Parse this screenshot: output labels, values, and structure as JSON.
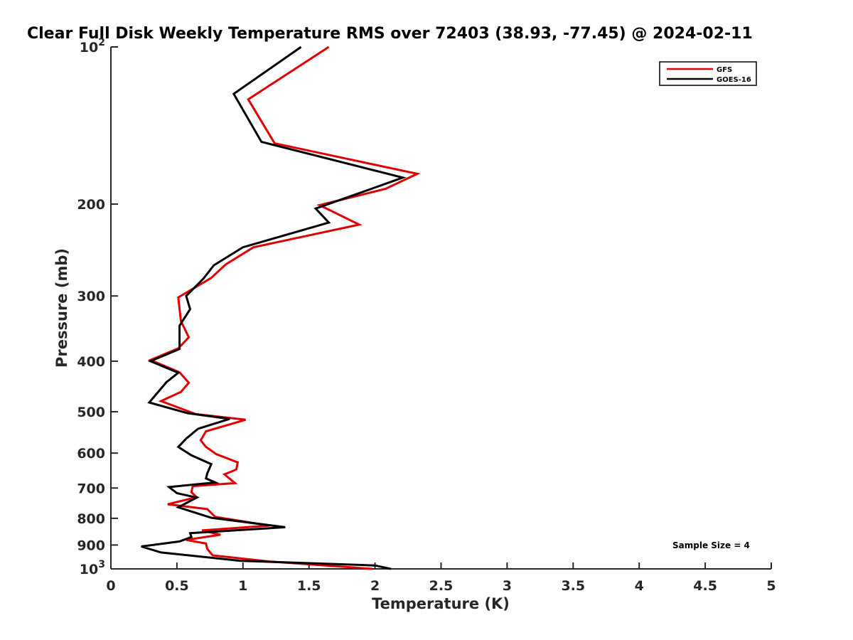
{
  "chart_data": {
    "type": "line",
    "title": "Clear Full Disk Weekly Temperature RMS over 72403 (38.93, -77.45) @ 2024-02-11",
    "xlabel": "Temperature (K)",
    "ylabel": "Pressure (mb)",
    "xlim": [
      0,
      5
    ],
    "ylim": [
      1000,
      100
    ],
    "y_scale": "log",
    "y_reversed": true,
    "x_ticks": [
      "0",
      "0.5",
      "1",
      "1.5",
      "2",
      "2.5",
      "3",
      "3.5",
      "4",
      "4.5",
      "5"
    ],
    "y_ticks": [
      {
        "value": 100,
        "base": "10",
        "exp": "2",
        "label": ""
      },
      {
        "value": 200,
        "label": "200"
      },
      {
        "value": 300,
        "label": "300"
      },
      {
        "value": 400,
        "label": "400"
      },
      {
        "value": 500,
        "label": "500"
      },
      {
        "value": 600,
        "label": "600"
      },
      {
        "value": 700,
        "label": "700"
      },
      {
        "value": 800,
        "label": "800"
      },
      {
        "value": 900,
        "label": "900"
      },
      {
        "value": 1000,
        "base": "10",
        "exp": "3",
        "label": ""
      }
    ],
    "grid": false,
    "legend_position": "top-right",
    "annotation": "Sample Size = 4",
    "series": [
      {
        "name": "GFS",
        "color": "#e00000",
        "points": [
          [
            1.65,
            100
          ],
          [
            1.04,
            126
          ],
          [
            1.24,
            153
          ],
          [
            2.32,
            175
          ],
          [
            2.08,
            187
          ],
          [
            1.58,
            201
          ],
          [
            1.88,
            219
          ],
          [
            1.08,
            242
          ],
          [
            0.87,
            261
          ],
          [
            0.76,
            277
          ],
          [
            0.51,
            302
          ],
          [
            0.53,
            335
          ],
          [
            0.59,
            360
          ],
          [
            0.51,
            378
          ],
          [
            0.3,
            398
          ],
          [
            0.52,
            420
          ],
          [
            0.59,
            440
          ],
          [
            0.53,
            458
          ],
          [
            0.38,
            477
          ],
          [
            0.64,
            505
          ],
          [
            1.02,
            518
          ],
          [
            0.72,
            545
          ],
          [
            0.68,
            567
          ],
          [
            0.72,
            584
          ],
          [
            0.8,
            603
          ],
          [
            0.96,
            625
          ],
          [
            0.95,
            645
          ],
          [
            0.86,
            659
          ],
          [
            0.94,
            685
          ],
          [
            0.62,
            694
          ],
          [
            0.61,
            713
          ],
          [
            0.65,
            729
          ],
          [
            0.43,
            752
          ],
          [
            0.73,
            768
          ],
          [
            0.79,
            795
          ],
          [
            1.2,
            826
          ],
          [
            0.69,
            844
          ],
          [
            0.83,
            860
          ],
          [
            0.57,
            880
          ],
          [
            0.72,
            894
          ],
          [
            0.73,
            916
          ],
          [
            0.77,
            942
          ],
          [
            1.2,
            968
          ],
          [
            1.98,
            1000
          ]
        ]
      },
      {
        "name": "GOES-16",
        "color": "#000000",
        "points": [
          [
            1.44,
            100
          ],
          [
            0.93,
            123
          ],
          [
            1.14,
            152
          ],
          [
            2.21,
            178
          ],
          [
            1.82,
            193
          ],
          [
            1.55,
            204
          ],
          [
            1.65,
            217
          ],
          [
            1.0,
            242
          ],
          [
            0.78,
            262
          ],
          [
            0.7,
            278
          ],
          [
            0.57,
            300
          ],
          [
            0.6,
            318
          ],
          [
            0.52,
            342
          ],
          [
            0.52,
            370
          ],
          [
            0.52,
            379
          ],
          [
            0.3,
            400
          ],
          [
            0.51,
            421
          ],
          [
            0.42,
            439
          ],
          [
            0.29,
            480
          ],
          [
            0.58,
            503
          ],
          [
            0.9,
            516
          ],
          [
            0.66,
            539
          ],
          [
            0.57,
            563
          ],
          [
            0.51,
            584
          ],
          [
            0.61,
            606
          ],
          [
            0.76,
            630
          ],
          [
            0.73,
            656
          ],
          [
            0.72,
            671
          ],
          [
            0.79,
            683
          ],
          [
            0.44,
            697
          ],
          [
            0.5,
            716
          ],
          [
            0.65,
            730
          ],
          [
            0.51,
            762
          ],
          [
            0.76,
            798
          ],
          [
            1.32,
            832
          ],
          [
            0.6,
            854
          ],
          [
            0.61,
            869
          ],
          [
            0.52,
            886
          ],
          [
            0.23,
            906
          ],
          [
            0.38,
            930
          ],
          [
            0.98,
            965
          ],
          [
            2.0,
            985
          ],
          [
            2.12,
            1000
          ]
        ]
      }
    ]
  }
}
